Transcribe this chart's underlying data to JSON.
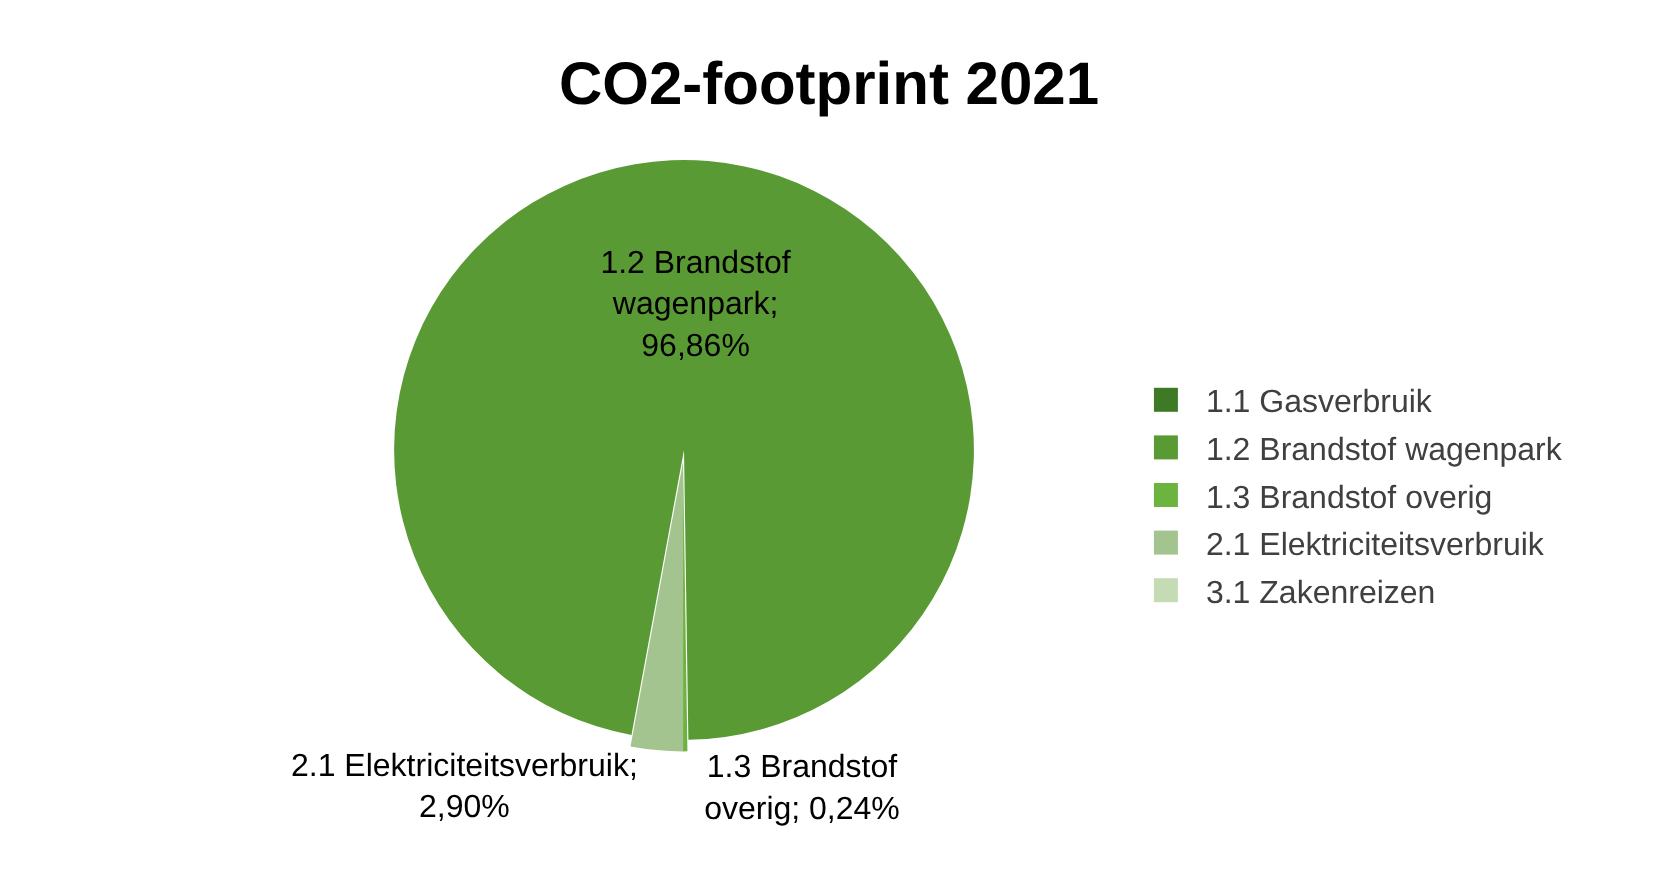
{
  "chart_data": {
    "type": "pie",
    "title": "CO2-footprint 2021",
    "categories": [
      "1.1 Gasverbruik",
      "1.2 Brandstof wagenpark",
      "1.3 Brandstof overig",
      "2.1 Elektriciteitsverbruik",
      "3.1 Zakenreizen"
    ],
    "values": [
      0,
      96.86,
      0.24,
      2.9,
      0
    ],
    "colors": [
      "#3e7a26",
      "#5a9a35",
      "#6db33f",
      "#a3c48e",
      "#c5dbb4"
    ],
    "value_labels": [
      null,
      "1.2 Brandstof\nwagenpark;\n96,86%",
      "1.3 Brandstof\noverig; 0,24%",
      "2.1 Elektriciteitsverbruik;\n2,90%",
      null
    ],
    "legend": "right"
  }
}
